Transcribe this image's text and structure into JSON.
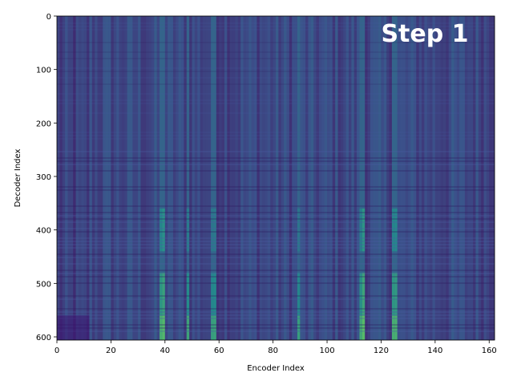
{
  "chart_data": {
    "type": "heatmap",
    "title": "",
    "annotation": "Step 1",
    "xlabel": "Encoder Index",
    "ylabel": "Decoder Index",
    "xlim": [
      0,
      162
    ],
    "ylim": [
      606,
      0
    ],
    "xticks": [
      0,
      20,
      40,
      60,
      80,
      100,
      120,
      140,
      160
    ],
    "yticks": [
      0,
      100,
      200,
      300,
      400,
      500,
      600
    ],
    "colormap": "viridis",
    "n_cols": 162,
    "n_rows": 606,
    "bright_columns": [
      {
        "x": 38,
        "intensity": 0.62
      },
      {
        "x": 39,
        "intensity": 0.72
      },
      {
        "x": 48,
        "intensity": 0.55
      },
      {
        "x": 57,
        "intensity": 0.5
      },
      {
        "x": 58,
        "intensity": 0.52
      },
      {
        "x": 89,
        "intensity": 0.5
      },
      {
        "x": 112,
        "intensity": 0.58
      },
      {
        "x": 113,
        "intensity": 0.75
      },
      {
        "x": 124,
        "intensity": 0.62
      },
      {
        "x": 125,
        "intensity": 0.65
      }
    ]
  },
  "colors": {
    "background": "#ffffff",
    "cmap_low": "#440154",
    "cmap_mid": "#3b528b",
    "cmap_base": "#3e4a89",
    "cmap_high": "#5ec962"
  }
}
